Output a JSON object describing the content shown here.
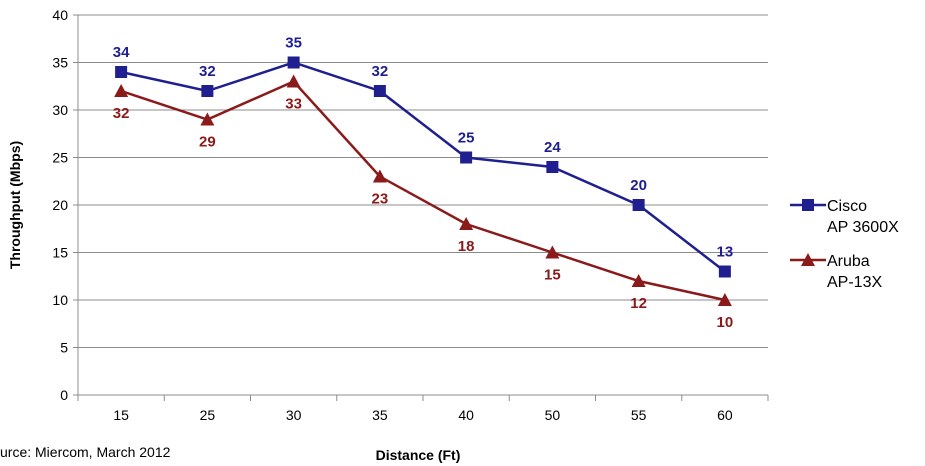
{
  "chart_data": {
    "type": "line",
    "categories": [
      "15",
      "25",
      "30",
      "35",
      "40",
      "50",
      "55",
      "60"
    ],
    "series": [
      {
        "name": "Cisco AP 3600X",
        "legend_lines": [
          "Cisco",
          "AP 3600X"
        ],
        "values": [
          34,
          32,
          35,
          32,
          25,
          24,
          20,
          13
        ],
        "color": "#1F1F8F",
        "marker": "square",
        "labels_position": "above"
      },
      {
        "name": "Aruba AP-13X",
        "legend_lines": [
          "Aruba",
          "AP-13X"
        ],
        "values": [
          32,
          29,
          33,
          23,
          18,
          15,
          12,
          10
        ],
        "color": "#8B1A1A",
        "marker": "triangle",
        "labels_position": "below"
      }
    ],
    "xlabel": "Distance (Ft)",
    "ylabel": "Throughput (Mbps)",
    "ylim": [
      0,
      40
    ],
    "yticks": [
      0,
      5,
      10,
      15,
      20,
      25,
      30,
      35,
      40
    ],
    "grid": true,
    "legend_position": "right",
    "source_note": "urce: Miercom, March 2012"
  }
}
